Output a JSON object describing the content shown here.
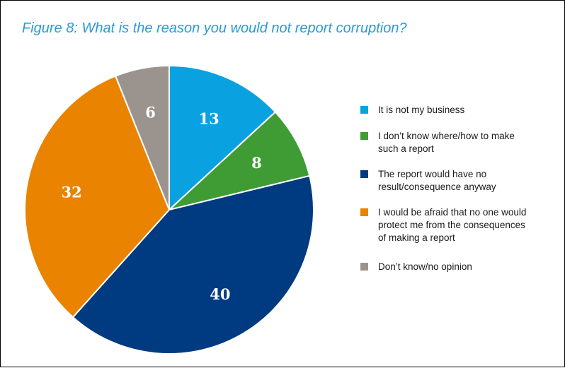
{
  "chart_data": {
    "type": "pie",
    "title": "Figure 8: What is the reason you would not report corruption?",
    "categories": [
      "It is not my business",
      "I don’t know where/how to make such a report",
      "The report would have no result/consequence anyway",
      "I would be afraid that no one would protect me from the consequences of making a report",
      "Don’t know/no opinion"
    ],
    "values": [
      13,
      8,
      40,
      32,
      6
    ],
    "data_labels": [
      "13",
      "8",
      "40",
      "32",
      "6"
    ],
    "colors": [
      "#0aa1e1",
      "#3f9c35",
      "#003a80",
      "#e98300",
      "#9b948e"
    ],
    "legend_placement": "right",
    "start_angle": "top, clockwise"
  },
  "legend": {
    "items": [
      {
        "lines": [
          "It is not my business"
        ],
        "color": "#0aa1e1"
      },
      {
        "lines": [
          "I don’t know where/how to make",
          "such a report"
        ],
        "color": "#3f9c35"
      },
      {
        "lines": [
          "The report would have no",
          "result/consequence anyway"
        ],
        "color": "#003a80"
      },
      {
        "lines": [
          "I would be afraid that no one would",
          "protect me from the consequences",
          "of making a report"
        ],
        "color": "#e98300"
      },
      {
        "lines": [
          "Don’t know/no opinion"
        ],
        "color": "#9b948e"
      }
    ]
  }
}
